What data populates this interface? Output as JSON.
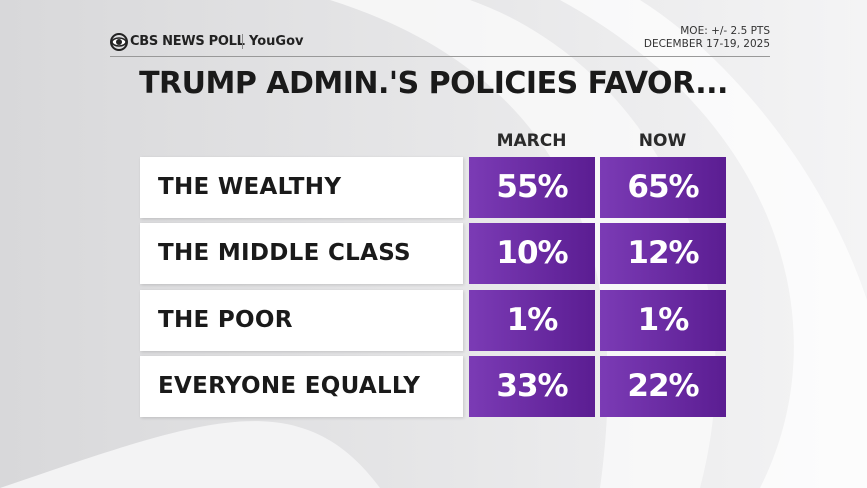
{
  "header": {
    "brand": "CBS NEWS POLL",
    "partner": "YouGov",
    "moe": "MOE: +/- 2.5 PTS",
    "dates": "DECEMBER 17-19, 2025"
  },
  "title": "TRUMP ADMIN.'S POLICIES FAVOR...",
  "table": {
    "columns": [
      "MARCH",
      "NOW"
    ],
    "rows": [
      [
        "THE WEALTHY",
        "55%",
        "65%"
      ],
      [
        "THE MIDDLE CLASS",
        "10%",
        "12%"
      ],
      [
        "THE POOR",
        "1%",
        "1%"
      ],
      [
        "EVERYONE EQUALLY",
        "33%",
        "22%"
      ]
    ]
  }
}
